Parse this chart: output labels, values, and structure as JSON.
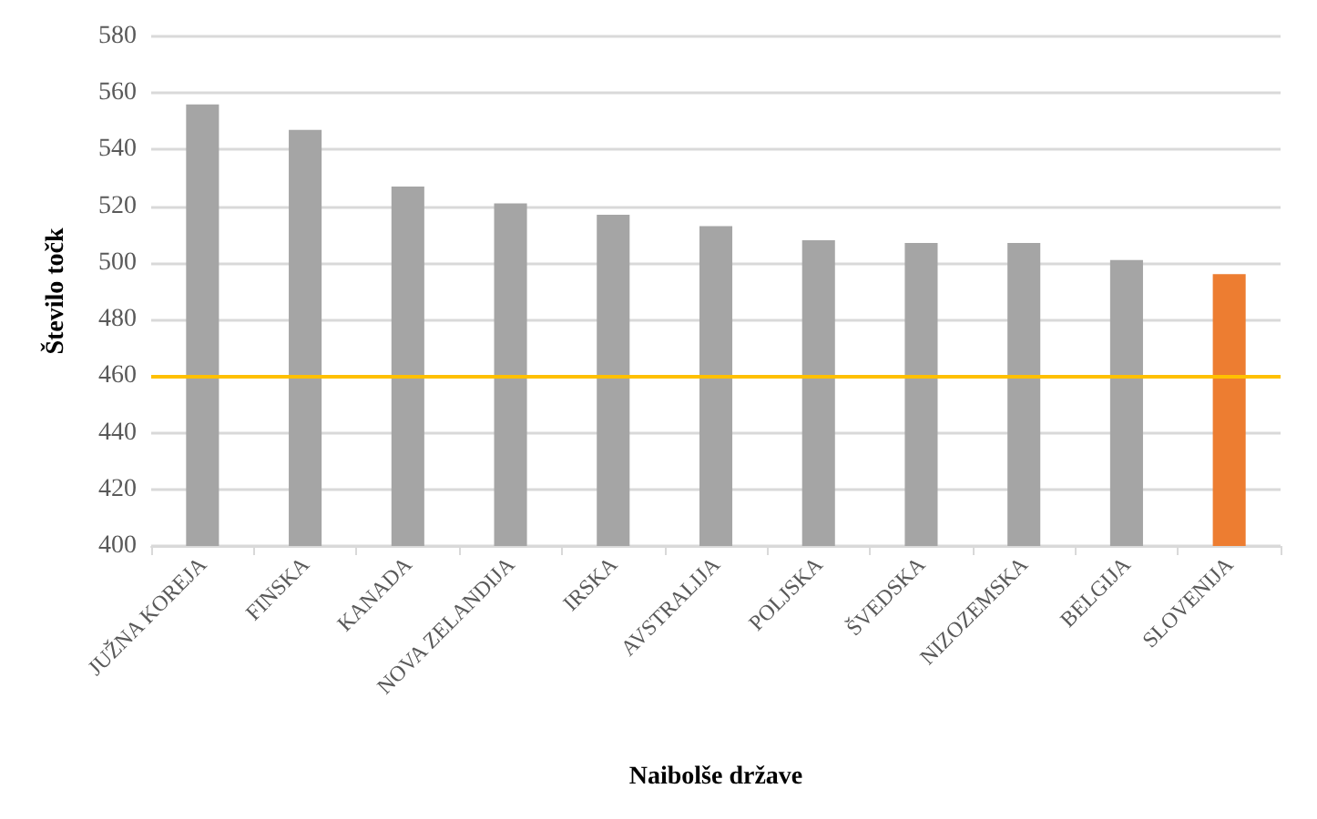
{
  "chart_data": {
    "type": "bar",
    "xlabel": "Naibolše države",
    "ylabel": "Število točk",
    "categories": [
      "JUŽNA KOREJA",
      "FINSKA",
      "KANADA",
      "NOVA ZELANDIJA",
      "IRSKA",
      "AVSTRALIJA",
      "POLJSKA",
      "ŠVEDSKA",
      "NIZOZEMSKA",
      "BELGIJA",
      "SLOVENIJA"
    ],
    "values": [
      556,
      547,
      527,
      521,
      517,
      513,
      508,
      507,
      507,
      501,
      496
    ],
    "colors": [
      "#a5a5a5",
      "#a5a5a5",
      "#a5a5a5",
      "#a5a5a5",
      "#a5a5a5",
      "#a5a5a5",
      "#a5a5a5",
      "#a5a5a5",
      "#a5a5a5",
      "#a5a5a5",
      "#ed7d31"
    ],
    "ylim": [
      400,
      580
    ],
    "yticks": [
      400,
      420,
      440,
      460,
      480,
      500,
      520,
      540,
      560,
      580
    ],
    "ref_lines": [
      {
        "axis": "y",
        "value": 460,
        "color": "#ffc000"
      }
    ],
    "grid": "y"
  }
}
